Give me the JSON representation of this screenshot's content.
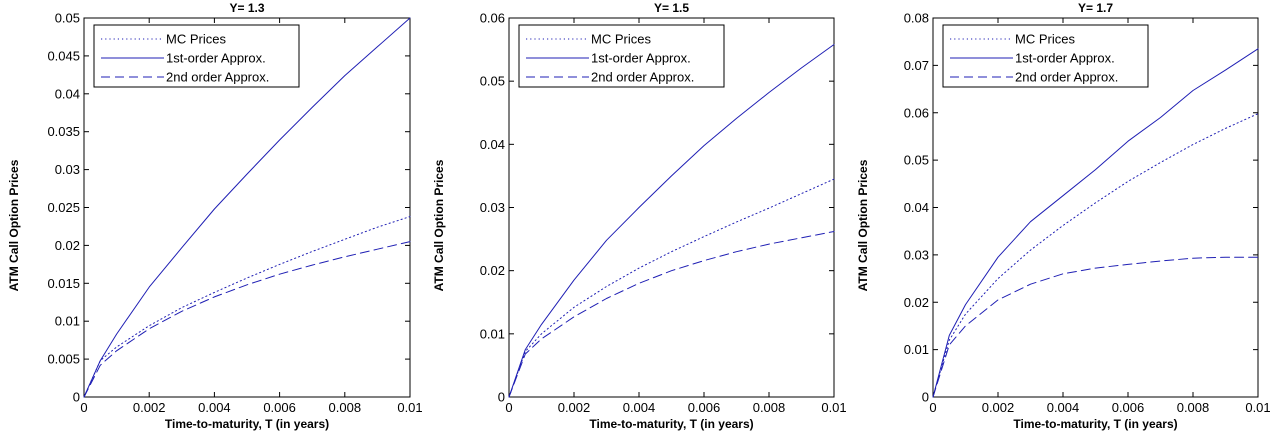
{
  "colors": {
    "series": "#1f1fb4",
    "axis": "#000000",
    "background": "#ffffff"
  },
  "chart_data": [
    {
      "type": "line",
      "title": "Y= 1.3",
      "xlabel": "Time-to-maturity, T (in years)",
      "ylabel": "ATM Call Option Prices",
      "xlim": [
        0,
        0.01
      ],
      "ylim": [
        0,
        0.05
      ],
      "xticks": [
        0,
        0.002,
        0.004,
        0.006,
        0.008,
        0.01
      ],
      "xtick_labels": [
        "0",
        "0.002",
        "0.004",
        "0.006",
        "0.008",
        "0.01"
      ],
      "yticks": [
        0,
        0.005,
        0.01,
        0.015,
        0.02,
        0.025,
        0.03,
        0.035,
        0.04,
        0.045,
        0.05
      ],
      "ytick_labels": [
        "0",
        "0.005",
        "0.01",
        "0.015",
        "0.02",
        "0.025",
        "0.03",
        "0.035",
        "0.04",
        "0.045",
        "0.05"
      ],
      "legend_position": "top-left",
      "x": [
        0,
        0.0005,
        0.001,
        0.002,
        0.003,
        0.004,
        0.005,
        0.006,
        0.007,
        0.008,
        0.009,
        0.01
      ],
      "series": [
        {
          "name": "MC Prices",
          "style": "dotted",
          "values": [
            0,
            0.0048,
            0.0066,
            0.0094,
            0.0118,
            0.0138,
            0.0157,
            0.0175,
            0.0192,
            0.0208,
            0.0224,
            0.0238
          ]
        },
        {
          "name": "1st-order Approx.",
          "style": "solid",
          "values": [
            0,
            0.0048,
            0.0083,
            0.0145,
            0.0197,
            0.0248,
            0.0294,
            0.0339,
            0.0382,
            0.0424,
            0.0462,
            0.05
          ]
        },
        {
          "name": "2nd order Approx.",
          "style": "dashed",
          "values": [
            0,
            0.0042,
            0.0061,
            0.009,
            0.0113,
            0.0132,
            0.0148,
            0.0162,
            0.0174,
            0.0185,
            0.0195,
            0.0205
          ]
        }
      ]
    },
    {
      "type": "line",
      "title": "Y= 1.5",
      "xlabel": "Time-to-maturity, T (in years)",
      "ylabel": "ATM Call Option Prices",
      "xlim": [
        0,
        0.01
      ],
      "ylim": [
        0,
        0.06
      ],
      "xticks": [
        0,
        0.002,
        0.004,
        0.006,
        0.008,
        0.01
      ],
      "xtick_labels": [
        "0",
        "0.002",
        "0.004",
        "0.006",
        "0.008",
        "0.01"
      ],
      "yticks": [
        0,
        0.01,
        0.02,
        0.03,
        0.04,
        0.05,
        0.06
      ],
      "ytick_labels": [
        "0",
        "0.01",
        "0.02",
        "0.03",
        "0.04",
        "0.05",
        "0.06"
      ],
      "legend_position": "top-left",
      "x": [
        0,
        0.0005,
        0.001,
        0.002,
        0.003,
        0.004,
        0.005,
        0.006,
        0.007,
        0.008,
        0.009,
        0.01
      ],
      "series": [
        {
          "name": "MC Prices",
          "style": "dotted",
          "values": [
            0,
            0.0072,
            0.01,
            0.0142,
            0.0175,
            0.0204,
            0.023,
            0.0254,
            0.0277,
            0.0299,
            0.0322,
            0.0345
          ]
        },
        {
          "name": "1st-order Approx.",
          "style": "solid",
          "values": [
            0,
            0.0075,
            0.0115,
            0.0185,
            0.0248,
            0.03,
            0.035,
            0.0398,
            0.0441,
            0.0482,
            0.0521,
            0.0558
          ]
        },
        {
          "name": "2nd order Approx.",
          "style": "dashed",
          "values": [
            0,
            0.0068,
            0.0092,
            0.0127,
            0.0156,
            0.018,
            0.02,
            0.0216,
            0.023,
            0.0242,
            0.0252,
            0.0262
          ]
        }
      ]
    },
    {
      "type": "line",
      "title": "Y= 1.7",
      "xlabel": "Time-to-maturity, T (in years)",
      "ylabel": "ATM Call Option Prices",
      "xlim": [
        0,
        0.01
      ],
      "ylim": [
        0,
        0.08
      ],
      "xticks": [
        0,
        0.002,
        0.004,
        0.006,
        0.008,
        0.01
      ],
      "xtick_labels": [
        "0",
        "0.002",
        "0.004",
        "0.006",
        "0.008",
        "0.01"
      ],
      "yticks": [
        0,
        0.01,
        0.02,
        0.03,
        0.04,
        0.05,
        0.06,
        0.07,
        0.08
      ],
      "ytick_labels": [
        "0",
        "0.01",
        "0.02",
        "0.03",
        "0.04",
        "0.05",
        "0.06",
        "0.07",
        "0.08"
      ],
      "legend_position": "top-left",
      "x": [
        0,
        0.0005,
        0.001,
        0.002,
        0.003,
        0.004,
        0.005,
        0.006,
        0.007,
        0.008,
        0.009,
        0.01
      ],
      "series": [
        {
          "name": "MC Prices",
          "style": "dotted",
          "values": [
            0,
            0.012,
            0.0175,
            0.025,
            0.031,
            0.0362,
            0.041,
            0.0455,
            0.0495,
            0.0533,
            0.0567,
            0.0598
          ]
        },
        {
          "name": "1st-order Approx.",
          "style": "solid",
          "values": [
            0,
            0.013,
            0.0195,
            0.0295,
            0.037,
            0.0425,
            0.048,
            0.054,
            0.059,
            0.0647,
            0.069,
            0.0735
          ]
        },
        {
          "name": "2nd order Approx.",
          "style": "dashed",
          "values": [
            0,
            0.011,
            0.015,
            0.0205,
            0.0238,
            0.026,
            0.0272,
            0.028,
            0.0287,
            0.0293,
            0.0295,
            0.0295
          ]
        }
      ]
    }
  ]
}
